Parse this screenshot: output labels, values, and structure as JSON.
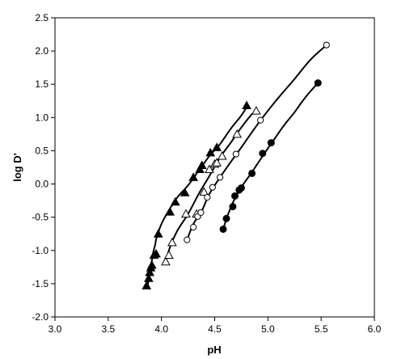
{
  "chart_data": {
    "type": "scatter",
    "title": "",
    "xlabel": "pH",
    "ylabel": "log D'",
    "xlim": [
      3.0,
      6.0
    ],
    "ylim": [
      -2.0,
      2.5
    ],
    "x_ticks": [
      "3.0",
      "3.5",
      "4.0",
      "4.5",
      "5.0",
      "5.5",
      "6.0"
    ],
    "y_ticks": [
      "-2.0",
      "-1.5",
      "-1.0",
      "-0.5",
      "0.0",
      "0.5",
      "1.0",
      "1.5",
      "2.0",
      "2.5"
    ],
    "grid": false,
    "legend": "none",
    "series": [
      {
        "marker": "filled-triangle",
        "x": [
          3.86,
          3.88,
          3.89,
          3.9,
          3.91,
          3.93,
          3.95,
          3.97,
          4.08,
          4.13,
          4.22,
          4.3,
          4.36,
          4.38,
          4.46,
          4.52,
          4.8
        ],
        "y": [
          -1.53,
          -1.42,
          -1.33,
          -1.26,
          -1.22,
          -1.07,
          -1.05,
          -0.75,
          -0.42,
          -0.27,
          -0.13,
          0.1,
          0.22,
          0.28,
          0.47,
          0.55,
          1.18
        ],
        "curve_x": [
          3.87,
          3.9,
          3.92,
          3.94,
          3.95,
          3.97,
          4.0,
          4.06,
          4.15,
          4.25,
          4.35,
          4.45,
          4.55,
          4.65,
          4.75,
          4.81
        ],
        "curve_y": [
          -1.53,
          -1.25,
          -1.05,
          -0.92,
          -0.83,
          -0.73,
          -0.6,
          -0.42,
          -0.2,
          -0.02,
          0.2,
          0.42,
          0.6,
          0.83,
          1.03,
          1.18
        ]
      },
      {
        "marker": "open-triangle",
        "x": [
          4.04,
          4.07,
          4.1,
          4.23,
          4.33,
          4.4,
          4.45,
          4.5,
          4.52,
          4.57,
          4.71,
          4.89
        ],
        "y": [
          -1.17,
          -1.07,
          -0.88,
          -0.45,
          -0.45,
          -0.12,
          0.22,
          0.3,
          0.32,
          0.42,
          0.75,
          1.1
        ],
        "curve_x": [
          4.04,
          4.08,
          4.15,
          4.25,
          4.35,
          4.45,
          4.55,
          4.65,
          4.75,
          4.85,
          4.9
        ],
        "curve_y": [
          -1.17,
          -0.95,
          -0.7,
          -0.45,
          -0.15,
          0.12,
          0.4,
          0.62,
          0.85,
          1.05,
          1.1
        ]
      },
      {
        "marker": "open-circle",
        "x": [
          4.24,
          4.3,
          4.34,
          4.37,
          4.43,
          4.48,
          4.55,
          4.7,
          4.93,
          5.55
        ],
        "y": [
          -0.84,
          -0.65,
          -0.49,
          -0.43,
          -0.2,
          -0.05,
          0.1,
          0.45,
          0.96,
          2.09
        ],
        "curve_x": [
          4.24,
          4.3,
          4.38,
          4.45,
          4.55,
          4.65,
          4.75,
          4.85,
          4.95,
          5.1,
          5.25,
          5.4,
          5.55
        ],
        "curve_y": [
          -0.84,
          -0.6,
          -0.4,
          -0.15,
          0.1,
          0.33,
          0.55,
          0.78,
          1.0,
          1.3,
          1.58,
          1.87,
          2.09
        ]
      },
      {
        "marker": "filled-circle",
        "x": [
          4.58,
          4.61,
          4.67,
          4.69,
          4.73,
          4.75,
          4.85,
          4.95,
          5.03,
          5.47
        ],
        "y": [
          -0.68,
          -0.52,
          -0.34,
          -0.18,
          -0.09,
          -0.06,
          0.16,
          0.46,
          0.62,
          1.52
        ],
        "curve_x": [
          4.58,
          4.62,
          4.68,
          4.75,
          4.85,
          4.95,
          5.05,
          5.15,
          5.25,
          5.35,
          5.47
        ],
        "curve_y": [
          -0.68,
          -0.48,
          -0.25,
          -0.05,
          0.18,
          0.42,
          0.65,
          0.88,
          1.08,
          1.3,
          1.52
        ]
      }
    ]
  }
}
